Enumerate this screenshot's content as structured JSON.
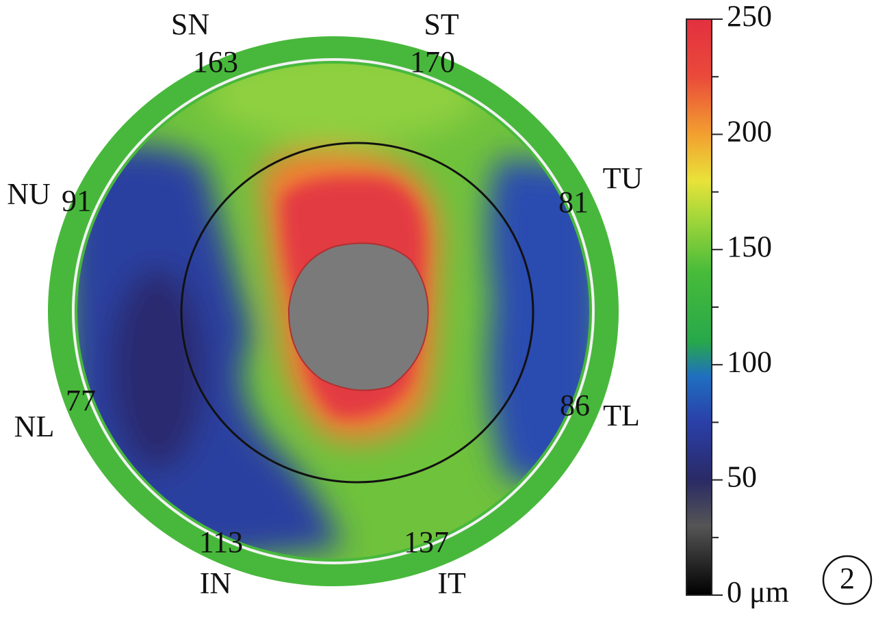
{
  "sectors": [
    {
      "label": "SN",
      "value": 163
    },
    {
      "label": "ST",
      "value": 170
    },
    {
      "label": "TU",
      "value": 81
    },
    {
      "label": "TL",
      "value": 86
    },
    {
      "label": "IT",
      "value": 137
    },
    {
      "label": "IN",
      "value": 113
    },
    {
      "label": "NL",
      "value": 77
    },
    {
      "label": "NU",
      "value": 91
    }
  ],
  "colorbar": {
    "range": [
      0,
      250
    ],
    "ticks": [
      {
        "value": 0,
        "label": "0 μm"
      },
      50,
      100,
      150,
      200,
      250
    ],
    "minor_ticks": [
      25,
      75,
      125,
      175,
      225
    ]
  },
  "figure_number": "2"
}
